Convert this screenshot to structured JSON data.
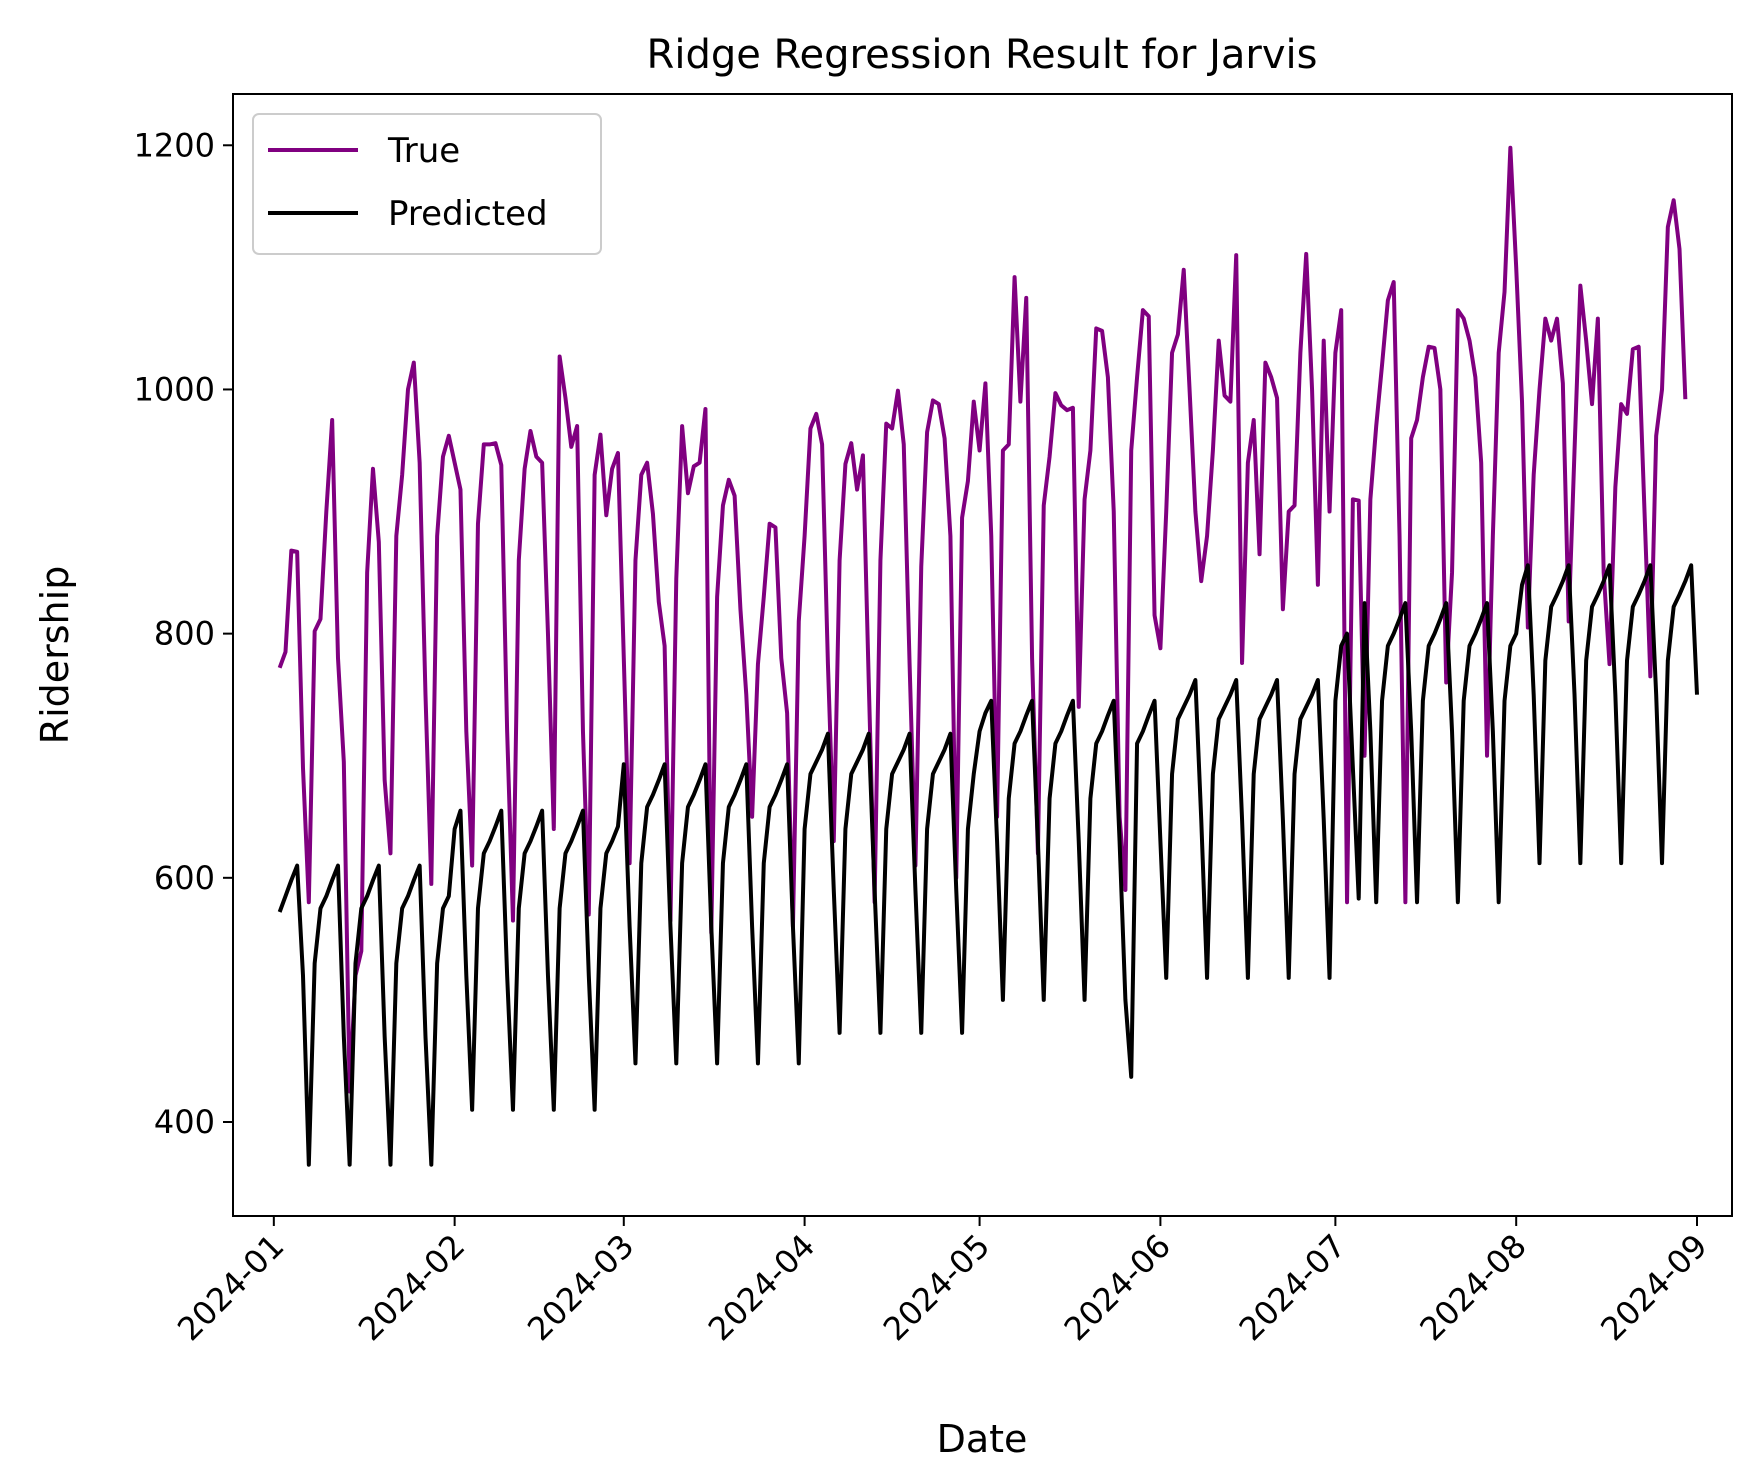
{
  "chart_data": {
    "type": "line",
    "title": "Ridge Regression Result for Jarvis",
    "xlabel": "Date",
    "ylabel": "Ridership",
    "x_start": "2024-01-02",
    "x_end": "2024-08-31",
    "xlim": [
      "2023-12-25",
      "2024-09-07"
    ],
    "ylim": [
      323,
      1242
    ],
    "y_ticks": [
      400,
      600,
      800,
      1000,
      1200
    ],
    "x_ticks": [
      "2024-01-01",
      "2024-02-01",
      "2024-03-01",
      "2024-04-01",
      "2024-05-01",
      "2024-06-01",
      "2024-07-01",
      "2024-08-01",
      "2024-09-01"
    ],
    "x_tick_labels": [
      "2024-01",
      "2024-02",
      "2024-03",
      "2024-04",
      "2024-05",
      "2024-06",
      "2024-07",
      "2024-08",
      "2024-09"
    ],
    "legend_position": "top-left",
    "grid": false,
    "series": [
      {
        "name": "True",
        "color": "#800080",
        "values": [
          772,
          785,
          868,
          867,
          690,
          580,
          802,
          812,
          900,
          975,
          780,
          695,
          425,
          520,
          540,
          850,
          935,
          875,
          680,
          620,
          880,
          930,
          1000,
          1022,
          940,
          750,
          595,
          880,
          945,
          962,
          940,
          918,
          720,
          610,
          890,
          955,
          955,
          956,
          938,
          720,
          565,
          860,
          935,
          966,
          945,
          940,
          800,
          640,
          1027,
          993,
          953,
          970,
          720,
          570,
          930,
          963,
          897,
          935,
          948,
          780,
          612,
          860,
          930,
          940,
          898,
          826,
          790,
          565,
          845,
          970,
          915,
          937,
          940,
          984,
          555,
          830,
          905,
          926,
          913,
          820,
          750,
          650,
          775,
          830,
          890,
          887,
          780,
          735,
          560,
          810,
          880,
          968,
          980,
          955,
          775,
          630,
          860,
          939,
          956,
          918,
          946,
          760,
          580,
          860,
          972,
          968,
          999,
          955,
          775,
          610,
          855,
          965,
          991,
          988,
          960,
          880,
          600,
          895,
          925,
          990,
          950,
          1005,
          880,
          650,
          950,
          955,
          1092,
          990,
          1075,
          780,
          620,
          905,
          945,
          997,
          987,
          983,
          985,
          740,
          910,
          950,
          1050,
          1048,
          1010,
          900,
          650,
          590,
          950,
          1010,
          1065,
          1060,
          815,
          788,
          900,
          1030,
          1045,
          1098,
          1000,
          900,
          843,
          880,
          950,
          1040,
          995,
          990,
          1110,
          776,
          940,
          975,
          865,
          1022,
          1010,
          993,
          820,
          900,
          905,
          1030,
          1111,
          1000,
          840,
          1040,
          900,
          1030,
          1065,
          580,
          910,
          909,
          700,
          910,
          970,
          1020,
          1073,
          1088,
          880,
          580,
          960,
          975,
          1010,
          1035,
          1034,
          1000,
          760,
          850,
          1065,
          1058,
          1040,
          1010,
          940,
          700,
          880,
          1030,
          1080,
          1198,
          1100,
          990,
          805,
          930,
          1000,
          1058,
          1040,
          1058,
          1005,
          810,
          950,
          1085,
          1040,
          988,
          1058,
          850,
          775,
          920,
          988,
          980,
          1033,
          1035,
          900,
          765,
          962,
          1000,
          1133,
          1155,
          1115,
          992
        ]
      },
      {
        "name": "Predicted",
        "color": "#000000",
        "values": [
          572,
          585,
          598,
          610,
          520,
          365,
          530,
          575,
          585,
          598,
          610,
          470,
          365,
          530,
          575,
          585,
          598,
          610,
          470,
          365,
          530,
          575,
          585,
          598,
          610,
          470,
          365,
          530,
          575,
          585,
          640,
          655,
          520,
          410,
          575,
          620,
          630,
          642,
          655,
          520,
          410,
          575,
          620,
          630,
          642,
          655,
          520,
          410,
          575,
          620,
          630,
          642,
          655,
          520,
          410,
          575,
          620,
          630,
          642,
          693,
          560,
          448,
          612,
          658,
          668,
          680,
          693,
          560,
          448,
          612,
          658,
          668,
          680,
          693,
          560,
          448,
          612,
          658,
          668,
          680,
          693,
          560,
          448,
          612,
          658,
          668,
          680,
          693,
          560,
          448,
          640,
          685,
          695,
          705,
          718,
          590,
          473,
          640,
          685,
          695,
          705,
          718,
          590,
          473,
          640,
          685,
          695,
          705,
          718,
          590,
          473,
          640,
          685,
          695,
          705,
          718,
          590,
          473,
          640,
          685,
          720,
          735,
          745,
          630,
          500,
          665,
          710,
          720,
          733,
          745,
          630,
          500,
          665,
          710,
          720,
          733,
          745,
          630,
          500,
          665,
          710,
          720,
          733,
          745,
          630,
          500,
          437,
          710,
          720,
          733,
          745,
          630,
          518,
          685,
          730,
          740,
          750,
          762,
          648,
          518,
          685,
          730,
          740,
          750,
          762,
          648,
          518,
          685,
          730,
          740,
          750,
          762,
          648,
          518,
          685,
          730,
          740,
          750,
          762,
          648,
          518,
          745,
          790,
          800,
          690,
          583,
          825,
          720,
          580,
          745,
          790,
          800,
          812,
          825,
          720,
          580,
          745,
          790,
          800,
          812,
          825,
          720,
          580,
          745,
          790,
          800,
          812,
          825,
          720,
          580,
          745,
          790,
          800,
          840,
          856,
          750,
          612,
          778,
          822,
          832,
          843,
          856,
          750,
          612,
          778,
          822,
          832,
          843,
          856,
          750,
          612,
          778,
          822,
          832,
          843,
          856,
          750,
          612,
          778,
          822,
          832,
          843,
          856,
          750
        ]
      }
    ]
  }
}
